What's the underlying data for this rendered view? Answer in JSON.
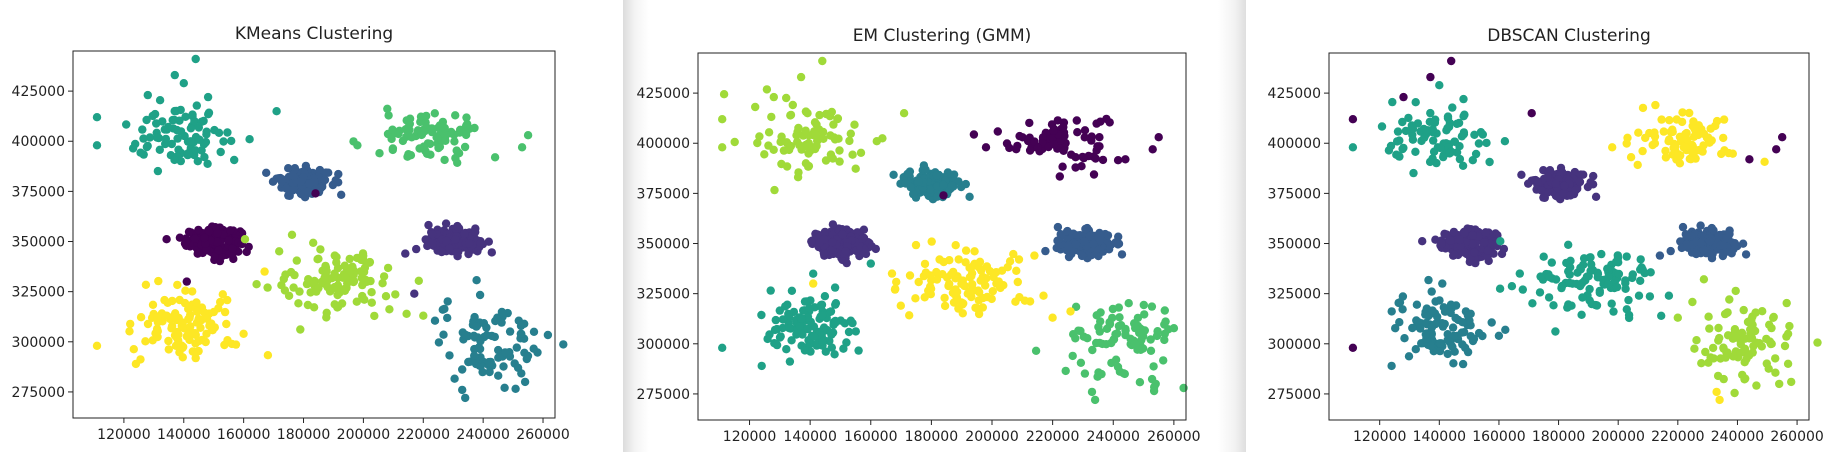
{
  "palette": {
    "c0": "#440154",
    "c1": "#46337e",
    "c2": "#365c8d",
    "c3": "#277f8e",
    "c4": "#1fa187",
    "c5": "#4ac16d",
    "c6": "#a0da39",
    "c7": "#fde725"
  },
  "chart_data": [
    {
      "type": "scatter",
      "title": "KMeans Clustering",
      "xlabel": "",
      "ylabel": "",
      "xlim": [
        103000,
        264000
      ],
      "ylim": [
        262000,
        445000
      ],
      "xticks": [
        120000,
        140000,
        160000,
        180000,
        200000,
        220000,
        240000,
        260000
      ],
      "xtick_labels": [
        "120000",
        "140000",
        "160000",
        "180000",
        "200000",
        "220000",
        "240000",
        "260000"
      ],
      "yticks": [
        275000,
        300000,
        325000,
        350000,
        375000,
        400000,
        425000
      ],
      "ytick_labels": [
        "275000",
        "300000",
        "325000",
        "350000",
        "375000",
        "400000",
        "425000"
      ],
      "grid": false,
      "clusters": [
        {
          "center": [
            150000,
            350000
          ],
          "spread": [
            4500,
            3200
          ],
          "n": 220,
          "color": "c0"
        },
        {
          "center": [
            230000,
            350000
          ],
          "spread": [
            4300,
            3000
          ],
          "n": 170,
          "color": "c1"
        },
        {
          "center": [
            180000,
            380000
          ],
          "spread": [
            4300,
            3200
          ],
          "n": 180,
          "color": "c2"
        },
        {
          "center": [
            243000,
            300000
          ],
          "spread": [
            9000,
            11000
          ],
          "n": 90,
          "color": "c3"
        },
        {
          "center": [
            140000,
            402000
          ],
          "spread": [
            9000,
            8500
          ],
          "n": 85,
          "color": "c4"
        },
        {
          "center": [
            222000,
            402000
          ],
          "spread": [
            8000,
            6500
          ],
          "n": 85,
          "color": "c5"
        },
        {
          "center": [
            192000,
            330000
          ],
          "spread": [
            10000,
            8000
          ],
          "n": 110,
          "color": "c6"
        },
        {
          "center": [
            141000,
            308000
          ],
          "spread": [
            8000,
            8500
          ],
          "n": 110,
          "color": "c7"
        }
      ],
      "points": [
        {
          "x": 111000,
          "y": 412000,
          "color": "c4"
        },
        {
          "x": 111000,
          "y": 398000,
          "color": "c4"
        },
        {
          "x": 144000,
          "y": 441000,
          "color": "c4"
        },
        {
          "x": 137000,
          "y": 433000,
          "color": "c4"
        },
        {
          "x": 128000,
          "y": 423000,
          "color": "c4"
        },
        {
          "x": 171000,
          "y": 415000,
          "color": "c4"
        },
        {
          "x": 162000,
          "y": 401000,
          "color": "c4"
        },
        {
          "x": 255000,
          "y": 403000,
          "color": "c5"
        },
        {
          "x": 253000,
          "y": 397000,
          "color": "c5"
        },
        {
          "x": 244000,
          "y": 392000,
          "color": "c5"
        },
        {
          "x": 198000,
          "y": 398000,
          "color": "c5"
        },
        {
          "x": 184000,
          "y": 374000,
          "color": "c0"
        },
        {
          "x": 141000,
          "y": 330000,
          "color": "c0"
        },
        {
          "x": 214000,
          "y": 344000,
          "color": "c1"
        },
        {
          "x": 217000,
          "y": 324000,
          "color": "c1"
        },
        {
          "x": 111000,
          "y": 298000,
          "color": "c7"
        },
        {
          "x": 167000,
          "y": 335000,
          "color": "c7"
        },
        {
          "x": 168000,
          "y": 327000,
          "color": "c6"
        },
        {
          "x": 220000,
          "y": 313000,
          "color": "c6"
        },
        {
          "x": 254000,
          "y": 280000,
          "color": "c3"
        },
        {
          "x": 234000,
          "y": 272000,
          "color": "c3"
        },
        {
          "x": 233000,
          "y": 276000,
          "color": "c3"
        },
        {
          "x": 257000,
          "y": 305000,
          "color": "c3"
        },
        {
          "x": 124000,
          "y": 289000,
          "color": "c7"
        },
        {
          "x": 160000,
          "y": 304000,
          "color": "c7"
        }
      ]
    },
    {
      "type": "scatter",
      "title": "EM Clustering (GMM)",
      "xlabel": "",
      "ylabel": "",
      "xlim": [
        103000,
        264000
      ],
      "ylim": [
        262000,
        445000
      ],
      "xticks": [
        120000,
        140000,
        160000,
        180000,
        200000,
        220000,
        240000,
        260000
      ],
      "xtick_labels": [
        "120000",
        "140000",
        "160000",
        "180000",
        "200000",
        "220000",
        "240000",
        "260000"
      ],
      "yticks": [
        275000,
        300000,
        325000,
        350000,
        375000,
        400000,
        425000
      ],
      "ytick_labels": [
        "275000",
        "300000",
        "325000",
        "350000",
        "375000",
        "400000",
        "425000"
      ],
      "grid": false,
      "clusters": [
        {
          "center": [
            222000,
            402000
          ],
          "spread": [
            8000,
            6500
          ],
          "n": 85,
          "color": "c0"
        },
        {
          "center": [
            150000,
            350000
          ],
          "spread": [
            4500,
            3200
          ],
          "n": 220,
          "color": "c1"
        },
        {
          "center": [
            230000,
            350000
          ],
          "spread": [
            4300,
            3000
          ],
          "n": 170,
          "color": "c2"
        },
        {
          "center": [
            180000,
            380000
          ],
          "spread": [
            4300,
            3200
          ],
          "n": 180,
          "color": "c3"
        },
        {
          "center": [
            141000,
            308000
          ],
          "spread": [
            8000,
            8500
          ],
          "n": 110,
          "color": "c4"
        },
        {
          "center": [
            243000,
            300000
          ],
          "spread": [
            9000,
            11000
          ],
          "n": 90,
          "color": "c5"
        },
        {
          "center": [
            140000,
            402000
          ],
          "spread": [
            9000,
            8500
          ],
          "n": 85,
          "color": "c6"
        },
        {
          "center": [
            192000,
            330000
          ],
          "spread": [
            10000,
            8000
          ],
          "n": 110,
          "color": "c7"
        }
      ],
      "points": [
        {
          "x": 111000,
          "y": 412000,
          "color": "c6"
        },
        {
          "x": 111000,
          "y": 398000,
          "color": "c6"
        },
        {
          "x": 144000,
          "y": 441000,
          "color": "c6"
        },
        {
          "x": 137000,
          "y": 433000,
          "color": "c6"
        },
        {
          "x": 128000,
          "y": 423000,
          "color": "c6"
        },
        {
          "x": 171000,
          "y": 415000,
          "color": "c6"
        },
        {
          "x": 162000,
          "y": 401000,
          "color": "c6"
        },
        {
          "x": 255000,
          "y": 403000,
          "color": "c0"
        },
        {
          "x": 253000,
          "y": 397000,
          "color": "c0"
        },
        {
          "x": 244000,
          "y": 392000,
          "color": "c0"
        },
        {
          "x": 198000,
          "y": 398000,
          "color": "c0"
        },
        {
          "x": 184000,
          "y": 374000,
          "color": "c0"
        },
        {
          "x": 111000,
          "y": 298000,
          "color": "c4"
        },
        {
          "x": 167000,
          "y": 335000,
          "color": "c7"
        },
        {
          "x": 168000,
          "y": 327000,
          "color": "c7"
        },
        {
          "x": 214000,
          "y": 344000,
          "color": "c7"
        },
        {
          "x": 217000,
          "y": 324000,
          "color": "c7"
        },
        {
          "x": 220000,
          "y": 313000,
          "color": "c7"
        },
        {
          "x": 141000,
          "y": 330000,
          "color": "c7"
        },
        {
          "x": 254000,
          "y": 280000,
          "color": "c5"
        },
        {
          "x": 234000,
          "y": 272000,
          "color": "c5"
        },
        {
          "x": 233000,
          "y": 276000,
          "color": "c5"
        },
        {
          "x": 257000,
          "y": 305000,
          "color": "c5"
        },
        {
          "x": 124000,
          "y": 289000,
          "color": "c4"
        },
        {
          "x": 160000,
          "y": 340000,
          "color": "c4"
        }
      ]
    },
    {
      "type": "scatter",
      "title": "DBSCAN Clustering",
      "xlabel": "",
      "ylabel": "",
      "xlim": [
        103000,
        264000
      ],
      "ylim": [
        262000,
        445000
      ],
      "xticks": [
        120000,
        140000,
        160000,
        180000,
        200000,
        220000,
        240000,
        260000
      ],
      "xtick_labels": [
        "120000",
        "140000",
        "160000",
        "180000",
        "200000",
        "220000",
        "240000",
        "260000"
      ],
      "yticks": [
        275000,
        300000,
        325000,
        350000,
        375000,
        400000,
        425000
      ],
      "ytick_labels": [
        "275000",
        "300000",
        "325000",
        "350000",
        "375000",
        "400000",
        "425000"
      ],
      "grid": false,
      "clusters": [
        {
          "center": [
            150000,
            350000
          ],
          "spread": [
            4500,
            3200
          ],
          "n": 220,
          "color": "c1"
        },
        {
          "center": [
            230000,
            350000
          ],
          "spread": [
            4300,
            3000
          ],
          "n": 170,
          "color": "c2"
        },
        {
          "center": [
            180000,
            380000
          ],
          "spread": [
            4300,
            3200
          ],
          "n": 180,
          "color": "c1"
        },
        {
          "center": [
            141000,
            308000
          ],
          "spread": [
            8000,
            8500
          ],
          "n": 110,
          "color": "c3"
        },
        {
          "center": [
            140000,
            402000
          ],
          "spread": [
            9000,
            8500
          ],
          "n": 85,
          "color": "c4"
        },
        {
          "center": [
            192000,
            330000
          ],
          "spread": [
            10000,
            8000
          ],
          "n": 110,
          "color": "c4"
        },
        {
          "center": [
            243000,
            300000
          ],
          "spread": [
            9000,
            11000
          ],
          "n": 90,
          "color": "c6"
        },
        {
          "center": [
            222000,
            402000
          ],
          "spread": [
            8000,
            6500
          ],
          "n": 85,
          "color": "c7"
        }
      ],
      "points": [
        {
          "x": 111000,
          "y": 412000,
          "color": "c0"
        },
        {
          "x": 111000,
          "y": 398000,
          "color": "c4"
        },
        {
          "x": 111000,
          "y": 298000,
          "color": "c0"
        },
        {
          "x": 144000,
          "y": 441000,
          "color": "c0"
        },
        {
          "x": 137000,
          "y": 433000,
          "color": "c0"
        },
        {
          "x": 128000,
          "y": 423000,
          "color": "c0"
        },
        {
          "x": 171000,
          "y": 415000,
          "color": "c0"
        },
        {
          "x": 162000,
          "y": 401000,
          "color": "c4"
        },
        {
          "x": 255000,
          "y": 403000,
          "color": "c0"
        },
        {
          "x": 253000,
          "y": 397000,
          "color": "c0"
        },
        {
          "x": 244000,
          "y": 392000,
          "color": "c0"
        },
        {
          "x": 198000,
          "y": 398000,
          "color": "c7"
        },
        {
          "x": 184000,
          "y": 374000,
          "color": "c1"
        },
        {
          "x": 167000,
          "y": 335000,
          "color": "c4"
        },
        {
          "x": 168000,
          "y": 327000,
          "color": "c4"
        },
        {
          "x": 214000,
          "y": 344000,
          "color": "c2"
        },
        {
          "x": 217000,
          "y": 324000,
          "color": "c4"
        },
        {
          "x": 220000,
          "y": 313000,
          "color": "c6"
        },
        {
          "x": 141000,
          "y": 330000,
          "color": "c3"
        },
        {
          "x": 254000,
          "y": 280000,
          "color": "c6"
        },
        {
          "x": 234000,
          "y": 272000,
          "color": "c7"
        },
        {
          "x": 233000,
          "y": 276000,
          "color": "c7"
        },
        {
          "x": 257000,
          "y": 305000,
          "color": "c6"
        },
        {
          "x": 124000,
          "y": 289000,
          "color": "c3"
        },
        {
          "x": 160000,
          "y": 304000,
          "color": "c3"
        }
      ]
    }
  ]
}
